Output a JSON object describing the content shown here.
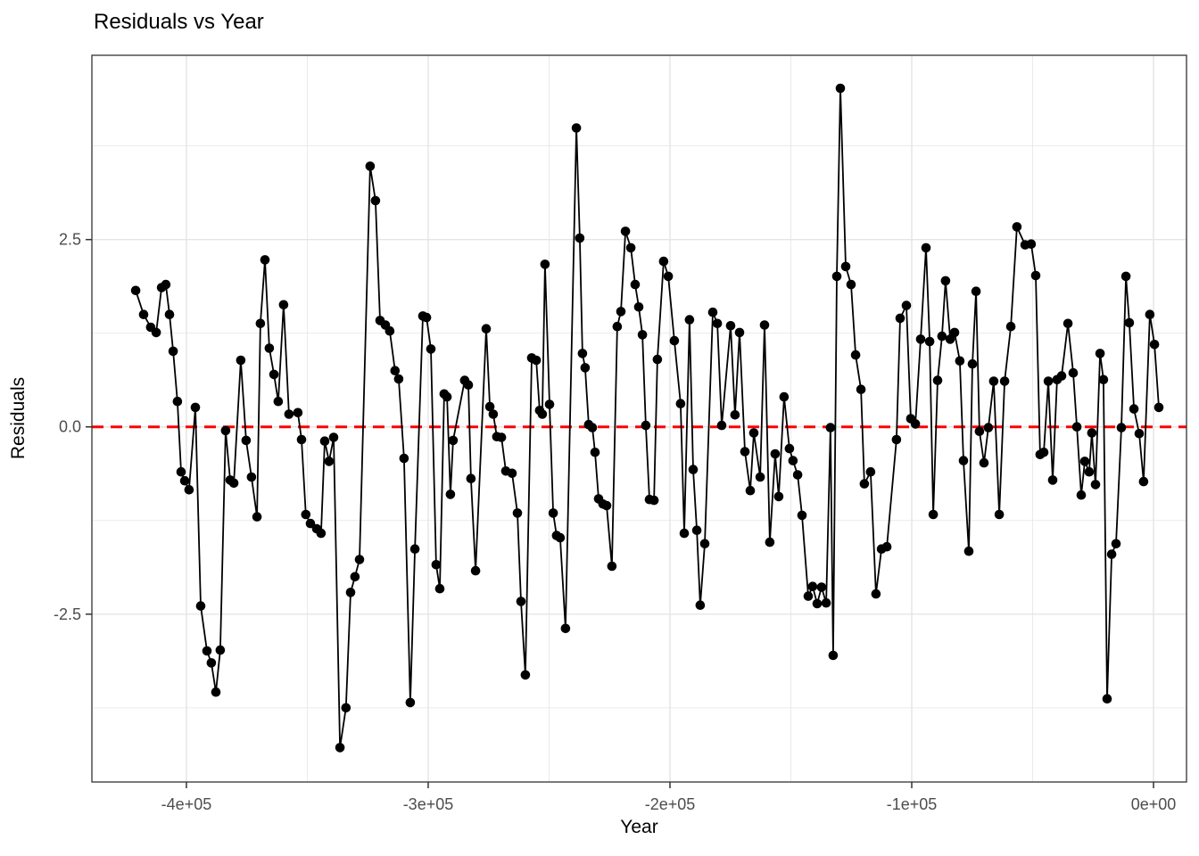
{
  "chart_data": {
    "type": "line",
    "title": "Residuals vs Year",
    "xlabel": "Year",
    "ylabel": "Residuals",
    "legend": "none",
    "grid": "on",
    "background": "#ffffff",
    "panel_border_color": "#333333",
    "grid_color": "#E4E4E4",
    "tick_label_color": "#4D4D4D",
    "point_color": "#000000",
    "line_color": "#000000",
    "reference_line": {
      "y": 0,
      "color": "#FF0000",
      "style": "dashed"
    },
    "xlim": [
      -439100,
      13650
    ],
    "ylim": [
      -4.74,
      4.96
    ],
    "x_ticks": [
      {
        "value": -400000,
        "label": "-4e+05"
      },
      {
        "value": -300000,
        "label": "-3e+05"
      },
      {
        "value": -200000,
        "label": "-2e+05"
      },
      {
        "value": -100000,
        "label": "-1e+05"
      },
      {
        "value": 0,
        "label": "0e+00"
      }
    ],
    "y_ticks": [
      {
        "value": 2.5,
        "label": "2.5"
      },
      {
        "value": 0.0,
        "label": "0.0"
      },
      {
        "value": -2.5,
        "label": "-2.5"
      }
    ],
    "x_minor": [
      -350000,
      -250000,
      -150000,
      -50000
    ],
    "y_minor": [
      3.75,
      1.25,
      -1.25,
      -3.75
    ],
    "points": [
      [
        -421000,
        1.82
      ],
      [
        -417700,
        1.5
      ],
      [
        -414800,
        1.33
      ],
      [
        -412500,
        1.26
      ],
      [
        -410300,
        1.86
      ],
      [
        -408500,
        1.9
      ],
      [
        -407000,
        1.5
      ],
      [
        -405500,
        1.01
      ],
      [
        -403700,
        0.34
      ],
      [
        -402200,
        -0.6
      ],
      [
        -400700,
        -0.72
      ],
      [
        -398900,
        -0.84
      ],
      [
        -396300,
        0.26
      ],
      [
        -394100,
        -2.39
      ],
      [
        -391500,
        -2.99
      ],
      [
        -389700,
        -3.15
      ],
      [
        -387800,
        -3.54
      ],
      [
        -386000,
        -2.98
      ],
      [
        -383800,
        -0.05
      ],
      [
        -381900,
        -0.71
      ],
      [
        -380400,
        -0.75
      ],
      [
        -377500,
        0.89
      ],
      [
        -375300,
        -0.18
      ],
      [
        -373100,
        -0.67
      ],
      [
        -370800,
        -1.2
      ],
      [
        -369400,
        1.38
      ],
      [
        -367500,
        2.23
      ],
      [
        -365700,
        1.05
      ],
      [
        -363800,
        0.7
      ],
      [
        -362000,
        0.34
      ],
      [
        -359800,
        1.63
      ],
      [
        -357600,
        0.17
      ],
      [
        -353900,
        0.19
      ],
      [
        -352400,
        -0.17
      ],
      [
        -350600,
        -1.17
      ],
      [
        -348700,
        -1.29
      ],
      [
        -346100,
        -1.36
      ],
      [
        -344300,
        -1.42
      ],
      [
        -342800,
        -0.19
      ],
      [
        -341000,
        -0.46
      ],
      [
        -339100,
        -0.14
      ],
      [
        -336500,
        -4.28
      ],
      [
        -334000,
        -3.75
      ],
      [
        -332100,
        -2.21
      ],
      [
        -330300,
        -2.0
      ],
      [
        -328400,
        -1.77
      ],
      [
        -324000,
        3.48
      ],
      [
        -321800,
        3.02
      ],
      [
        -319900,
        1.42
      ],
      [
        -317700,
        1.36
      ],
      [
        -315900,
        1.28
      ],
      [
        -313700,
        0.75
      ],
      [
        -312200,
        0.64
      ],
      [
        -310000,
        -0.42
      ],
      [
        -307400,
        -3.68
      ],
      [
        -305500,
        -1.63
      ],
      [
        -302200,
        1.48
      ],
      [
        -300700,
        1.46
      ],
      [
        -298900,
        1.04
      ],
      [
        -296700,
        -1.84
      ],
      [
        -295200,
        -2.16
      ],
      [
        -293400,
        0.44
      ],
      [
        -292200,
        0.4
      ],
      [
        -290800,
        -0.9
      ],
      [
        -289700,
        -0.18
      ],
      [
        -284900,
        0.62
      ],
      [
        -283400,
        0.56
      ],
      [
        -282300,
        -0.69
      ],
      [
        -280400,
        -1.92
      ],
      [
        -276000,
        1.31
      ],
      [
        -274500,
        0.27
      ],
      [
        -273100,
        0.17
      ],
      [
        -271600,
        -0.13
      ],
      [
        -269700,
        -0.14
      ],
      [
        -267900,
        -0.59
      ],
      [
        -265300,
        -0.62
      ],
      [
        -263100,
        -1.15
      ],
      [
        -261600,
        -2.33
      ],
      [
        -259800,
        -3.31
      ],
      [
        -257200,
        0.92
      ],
      [
        -255300,
        0.89
      ],
      [
        -253900,
        0.22
      ],
      [
        -252800,
        0.17
      ],
      [
        -251700,
        2.17
      ],
      [
        -249800,
        0.3
      ],
      [
        -248300,
        -1.15
      ],
      [
        -246900,
        -1.45
      ],
      [
        -245400,
        -1.48
      ],
      [
        -243200,
        -2.69
      ],
      [
        -238700,
        3.99
      ],
      [
        -237300,
        2.52
      ],
      [
        -236200,
        0.98
      ],
      [
        -235100,
        0.79
      ],
      [
        -233600,
        0.03
      ],
      [
        -232100,
        -0.01
      ],
      [
        -231000,
        -0.34
      ],
      [
        -229500,
        -0.96
      ],
      [
        -227700,
        -1.03
      ],
      [
        -226200,
        -1.05
      ],
      [
        -224000,
        -1.86
      ],
      [
        -221800,
        1.34
      ],
      [
        -220300,
        1.54
      ],
      [
        -218400,
        2.61
      ],
      [
        -216200,
        2.39
      ],
      [
        -214400,
        1.9
      ],
      [
        -212900,
        1.6
      ],
      [
        -211400,
        1.23
      ],
      [
        -210000,
        0.02
      ],
      [
        -208500,
        -0.97
      ],
      [
        -206600,
        -0.98
      ],
      [
        -205200,
        0.9
      ],
      [
        -202600,
        2.21
      ],
      [
        -200700,
        2.01
      ],
      [
        -198200,
        1.15
      ],
      [
        -195600,
        0.31
      ],
      [
        -194100,
        -1.42
      ],
      [
        -191900,
        1.43
      ],
      [
        -190400,
        -0.57
      ],
      [
        -188900,
        -1.38
      ],
      [
        -187500,
        -2.38
      ],
      [
        -185600,
        -1.56
      ],
      [
        -182300,
        1.53
      ],
      [
        -180400,
        1.38
      ],
      [
        -178600,
        0.02
      ],
      [
        -174900,
        1.35
      ],
      [
        -173100,
        0.16
      ],
      [
        -171200,
        1.26
      ],
      [
        -169000,
        -0.33
      ],
      [
        -166800,
        -0.85
      ],
      [
        -165300,
        -0.08
      ],
      [
        -162700,
        -0.67
      ],
      [
        -160900,
        1.36
      ],
      [
        -158700,
        -1.54
      ],
      [
        -156500,
        -0.36
      ],
      [
        -155000,
        -0.93
      ],
      [
        -152800,
        0.4
      ],
      [
        -150600,
        -0.29
      ],
      [
        -149100,
        -0.45
      ],
      [
        -147200,
        -0.64
      ],
      [
        -145400,
        -1.18
      ],
      [
        -142800,
        -2.26
      ],
      [
        -141000,
        -2.13
      ],
      [
        -139100,
        -2.36
      ],
      [
        -137300,
        -2.14
      ],
      [
        -135400,
        -2.35
      ],
      [
        -133600,
        -0.01
      ],
      [
        -132500,
        -3.05
      ],
      [
        -131000,
        2.01
      ],
      [
        -129500,
        4.52
      ],
      [
        -127300,
        2.14
      ],
      [
        -125100,
        1.9
      ],
      [
        -123200,
        0.96
      ],
      [
        -121000,
        0.5
      ],
      [
        -119600,
        -0.76
      ],
      [
        -117000,
        -0.6
      ],
      [
        -114800,
        -2.23
      ],
      [
        -112500,
        -1.63
      ],
      [
        -110300,
        -1.6
      ],
      [
        -106300,
        -0.17
      ],
      [
        -104800,
        1.45
      ],
      [
        -102200,
        1.62
      ],
      [
        -100400,
        0.11
      ],
      [
        -98500,
        0.04
      ],
      [
        -96300,
        1.17
      ],
      [
        -94100,
        2.39
      ],
      [
        -92600,
        1.14
      ],
      [
        -91100,
        -1.17
      ],
      [
        -89300,
        0.62
      ],
      [
        -87500,
        1.21
      ],
      [
        -86000,
        1.95
      ],
      [
        -84100,
        1.17
      ],
      [
        -82300,
        1.26
      ],
      [
        -80100,
        0.88
      ],
      [
        -78600,
        -0.45
      ],
      [
        -76400,
        -1.66
      ],
      [
        -74900,
        0.84
      ],
      [
        -73400,
        1.81
      ],
      [
        -72000,
        -0.06
      ],
      [
        -70100,
        -0.48
      ],
      [
        -68300,
        -0.01
      ],
      [
        -66100,
        0.61
      ],
      [
        -63800,
        -1.17
      ],
      [
        -61600,
        0.61
      ],
      [
        -59000,
        1.34
      ],
      [
        -56500,
        2.67
      ],
      [
        -53100,
        2.43
      ],
      [
        -50600,
        2.44
      ],
      [
        -48700,
        2.02
      ],
      [
        -46900,
        -0.37
      ],
      [
        -45400,
        -0.34
      ],
      [
        -43500,
        0.61
      ],
      [
        -41700,
        -0.71
      ],
      [
        -39900,
        0.63
      ],
      [
        -38000,
        0.68
      ],
      [
        -35400,
        1.38
      ],
      [
        -33200,
        0.72
      ],
      [
        -31700,
        0.0
      ],
      [
        -29900,
        -0.91
      ],
      [
        -28400,
        -0.46
      ],
      [
        -26600,
        -0.6
      ],
      [
        -25500,
        -0.08
      ],
      [
        -24000,
        -0.77
      ],
      [
        -22100,
        0.98
      ],
      [
        -20700,
        0.63
      ],
      [
        -19200,
        -3.63
      ],
      [
        -17300,
        -1.7
      ],
      [
        -15500,
        -1.56
      ],
      [
        -13300,
        -0.01
      ],
      [
        -11400,
        2.01
      ],
      [
        -10000,
        1.39
      ],
      [
        -8100,
        0.24
      ],
      [
        -5900,
        -0.09
      ],
      [
        -4100,
        -0.73
      ],
      [
        -1500,
        1.5
      ],
      [
        400,
        1.1
      ],
      [
        2200,
        0.26
      ]
    ]
  }
}
